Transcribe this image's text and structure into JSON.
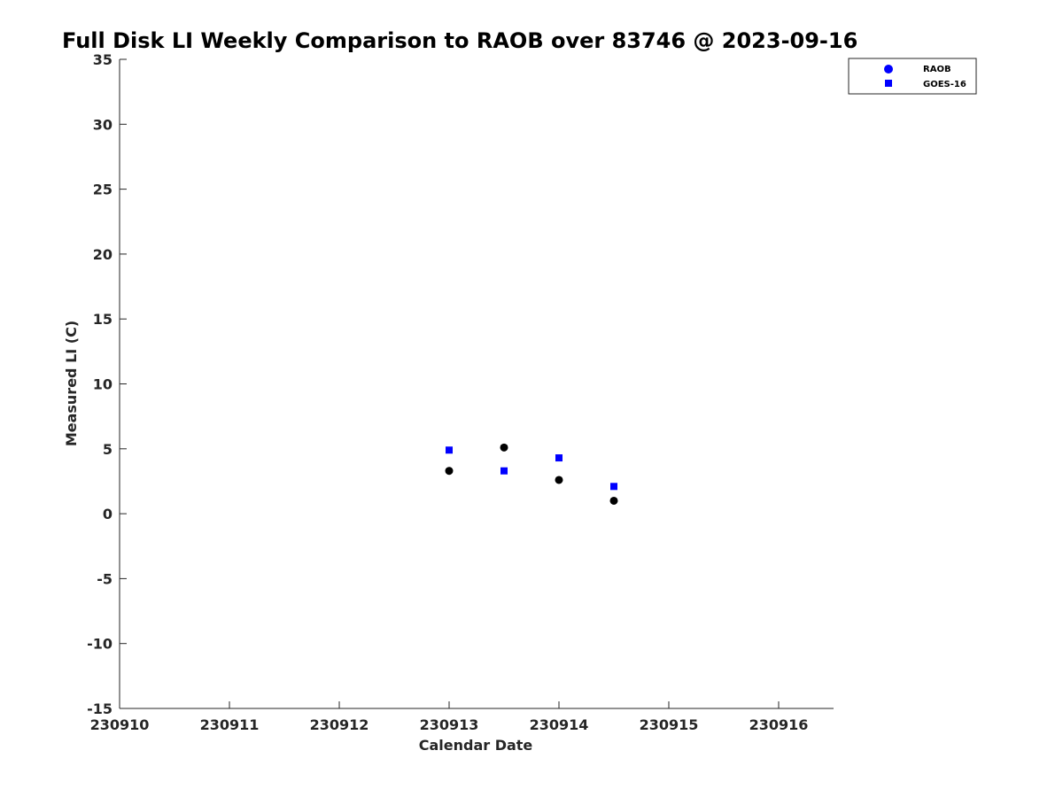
{
  "chart_data": {
    "type": "scatter",
    "title": "Full Disk LI Weekly Comparison to RAOB over 83746 @ 2023-09-16",
    "xlabel": "Calendar Date",
    "ylabel": "Measured LI (C)",
    "xlim": [
      230910,
      230916.5
    ],
    "ylim": [
      -15,
      35
    ],
    "xticks": [
      230910,
      230911,
      230912,
      230913,
      230914,
      230915,
      230916
    ],
    "xtick_labels": [
      "230910",
      "230911",
      "230912",
      "230913",
      "230914",
      "230915",
      "230916"
    ],
    "yticks": [
      -15,
      -10,
      -5,
      0,
      5,
      10,
      15,
      20,
      25,
      30,
      35
    ],
    "ytick_labels": [
      "-15",
      "-10",
      "-5",
      "0",
      "5",
      "10",
      "15",
      "20",
      "25",
      "30",
      "35"
    ],
    "grid": false,
    "legend_position": "top-right",
    "series": [
      {
        "name": "RAOB",
        "marker": "circle",
        "marker_color": "#000000",
        "legend_color": "#0000ff",
        "x": [
          230913,
          230913.5,
          230914,
          230914.5
        ],
        "y": [
          3.3,
          5.1,
          2.6,
          1.0
        ]
      },
      {
        "name": "GOES-16",
        "marker": "square",
        "marker_color": "#0000ff",
        "legend_color": "#0000ff",
        "x": [
          230913,
          230913.5,
          230914,
          230914.5
        ],
        "y": [
          4.9,
          3.3,
          4.3,
          2.1
        ]
      }
    ]
  }
}
